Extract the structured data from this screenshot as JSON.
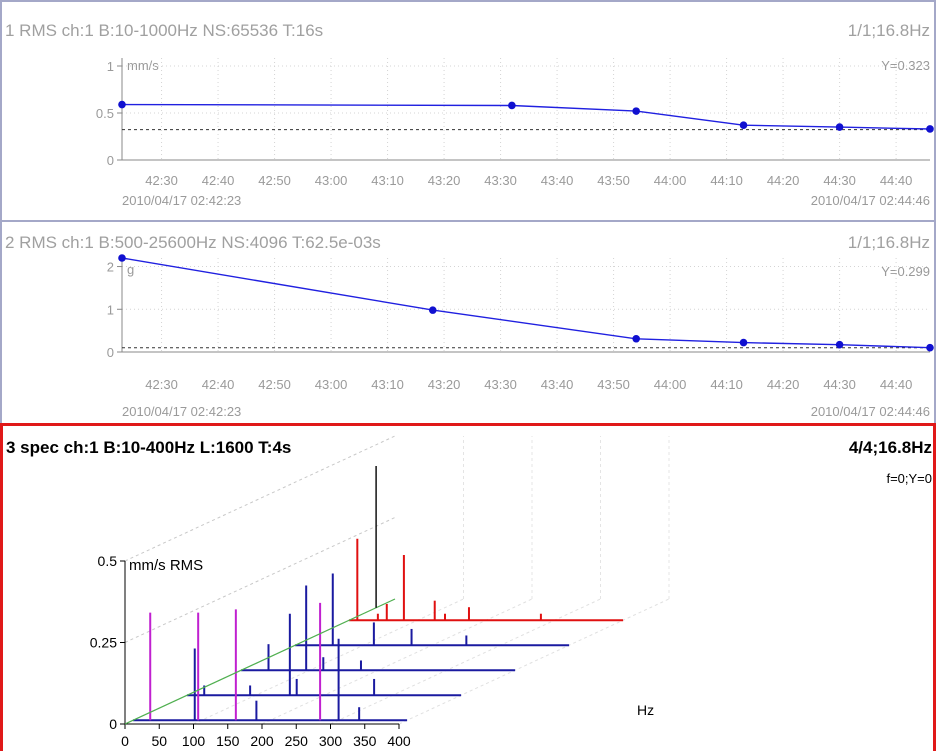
{
  "chart_data": [
    {
      "type": "line",
      "title": "1 RMS ch:1 B:10-1000Hz NS:65536 T:16s",
      "right_title": "1/1;16.8Hz",
      "ylabel": "mm/s",
      "cursor_readout": "Y=0.323",
      "ylim": [
        0,
        1
      ],
      "yticks": [
        "1",
        "0.5",
        "0"
      ],
      "xticks": [
        "42:30",
        "42:40",
        "42:50",
        "43:00",
        "43:10",
        "43:20",
        "43:30",
        "43:40",
        "43:50",
        "44:00",
        "44:10",
        "44:20",
        "44:30",
        "44:40"
      ],
      "x_start_label": "2010/04/17 02:42:23",
      "x_end_label": "2010/04/17 02:44:46",
      "x_start_seconds": 2543,
      "x_end_seconds": 2686,
      "reference_y": 0.323,
      "grid": true,
      "series": [
        {
          "x": [
            2543,
            2612,
            2634,
            2653,
            2670,
            2686
          ],
          "values": [
            0.59,
            0.58,
            0.52,
            0.37,
            0.35,
            0.33
          ]
        }
      ]
    },
    {
      "type": "line",
      "title": "2 RMS ch:1 B:500-25600Hz NS:4096 T:62.5e-03s",
      "right_title": "1/1;16.8Hz",
      "ylabel": "g",
      "cursor_readout": "Y=0.299",
      "ylim": [
        0,
        2.2
      ],
      "yticks": [
        "2",
        "1",
        "0"
      ],
      "xticks": [
        "42:30",
        "42:40",
        "42:50",
        "43:00",
        "43:10",
        "43:20",
        "43:30",
        "43:40",
        "43:50",
        "44:00",
        "44:10",
        "44:20",
        "44:30",
        "44:40"
      ],
      "x_start_label": "2010/04/17 02:42:23",
      "x_end_label": "2010/04/17 02:44:46",
      "x_start_seconds": 2543,
      "x_end_seconds": 2686,
      "reference_y": 0.1,
      "grid": true,
      "series": [
        {
          "x": [
            2543,
            2598,
            2634,
            2653,
            2670,
            2686
          ],
          "values": [
            2.2,
            0.98,
            0.31,
            0.22,
            0.17,
            0.1
          ]
        }
      ]
    },
    {
      "type": "waterfall",
      "title": "3 spec ch:1 B:10-400Hz L:1600 T:4s",
      "right_title": "4/4;16.8Hz",
      "cursor_readout": "f=0;Y=0",
      "ylabel": "mm/s RMS",
      "xlabel": "Hz",
      "ylim": [
        0,
        0.5
      ],
      "xlim": [
        0,
        400
      ],
      "yticks": [
        "0.5",
        "0.25",
        "0"
      ],
      "xticks": [
        "0",
        "50",
        "100",
        "150",
        "200",
        "250",
        "300",
        "350",
        "400"
      ],
      "grid": true,
      "series": [
        {
          "name": "",
          "color": "#1a1aa0",
          "peaks": [
            [
              25,
              0.33
            ],
            [
              90,
              0.22
            ],
            [
              95,
              0.33
            ],
            [
              150,
              0.34
            ],
            [
              180,
              0.06
            ],
            [
              273,
              0.36
            ],
            [
              300,
              0.25
            ],
            [
              330,
              0.04
            ]
          ]
        },
        {
          "name": "",
          "color": "#1a1aa0",
          "peaks": [
            [
              25,
              0.03
            ],
            [
              92,
              0.03
            ],
            [
              150,
              0.25
            ],
            [
              160,
              0.05
            ],
            [
              273,
              0.05
            ]
          ]
        },
        {
          "name": "",
          "color": "#1a1aa0",
          "peaks": [
            [
              40,
              0.08
            ],
            [
              95,
              0.26
            ],
            [
              120,
              0.04
            ],
            [
              175,
              0.03
            ]
          ]
        },
        {
          "name": "",
          "color": "#1a1aa0",
          "peaks": [
            [
              55,
              0.22
            ],
            [
              115,
              0.07
            ],
            [
              170,
              0.05
            ],
            [
              250,
              0.03
            ]
          ]
        },
        {
          "name": "",
          "color": "#e01010",
          "peaks": [
            [
              12,
              0.25
            ],
            [
              42,
              0.02
            ],
            [
              55,
              0.05
            ],
            [
              80,
              0.2
            ],
            [
              125,
              0.06
            ],
            [
              140,
              0.02
            ],
            [
              175,
              0.04
            ],
            [
              280,
              0.02
            ]
          ]
        }
      ]
    }
  ]
}
